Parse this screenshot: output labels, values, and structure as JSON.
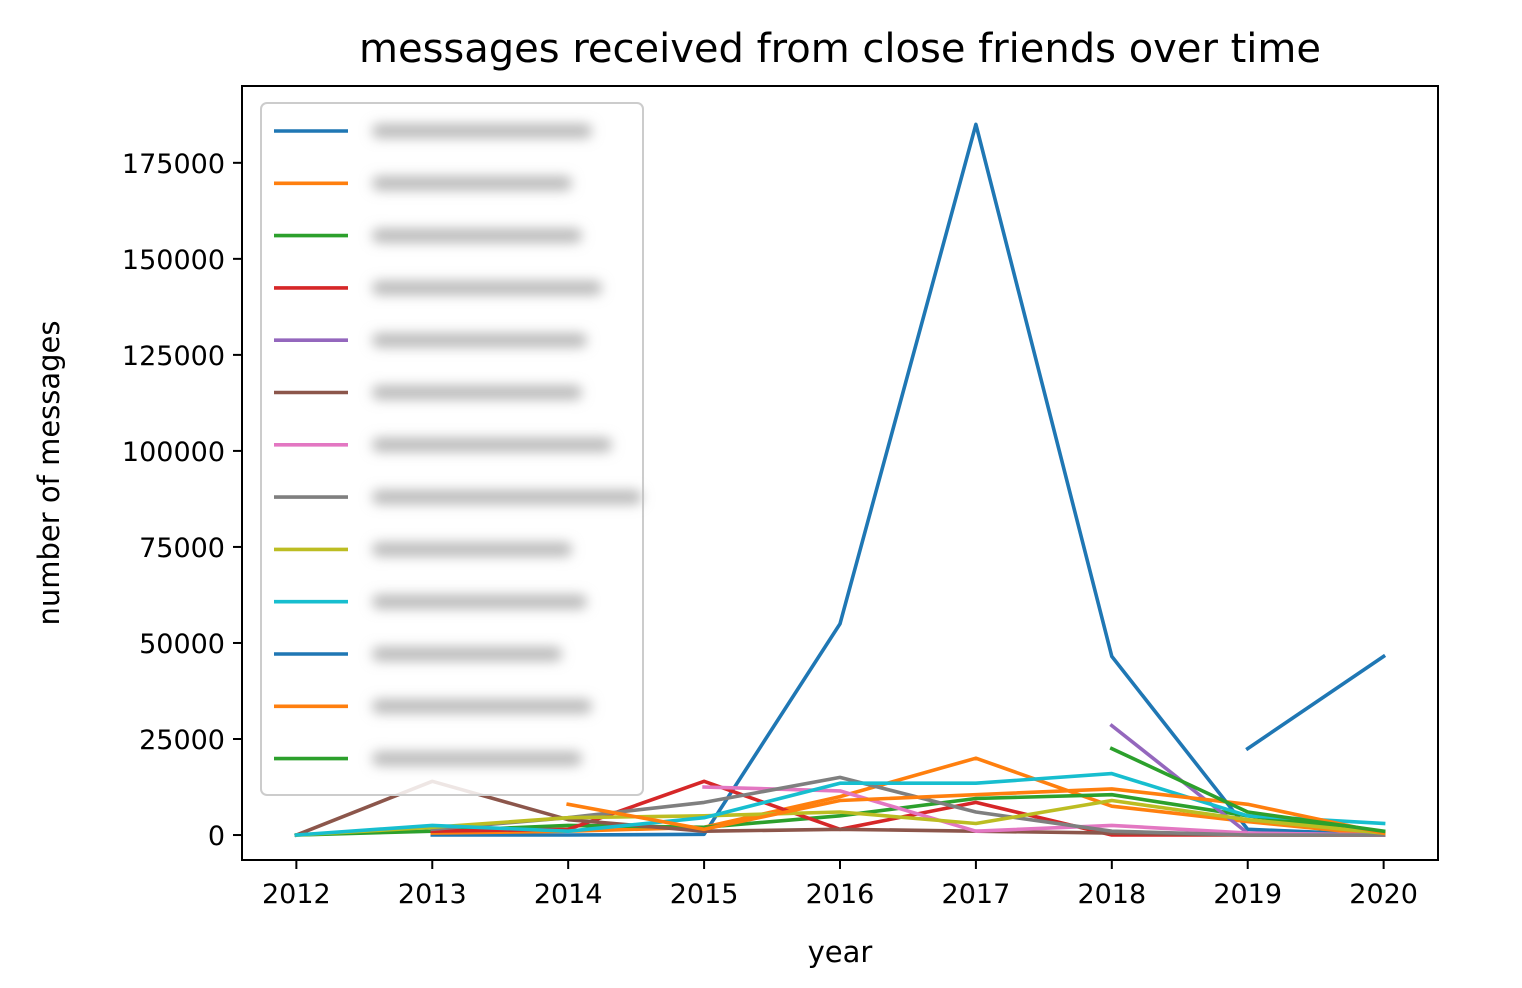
{
  "chart_data": {
    "type": "line",
    "title": "messages received from close friends over time",
    "xlabel": "year",
    "ylabel": "number of messages",
    "xlim": [
      2011.6,
      2020.4
    ],
    "ylim": [
      -6500,
      195000
    ],
    "x_ticks": [
      "2012",
      "2013",
      "2014",
      "2015",
      "2016",
      "2017",
      "2018",
      "2019",
      "2020"
    ],
    "y_ticks": [
      "0",
      "25000",
      "50000",
      "75000",
      "100000",
      "125000",
      "150000",
      "175000"
    ],
    "y_tick_values": [
      0,
      25000,
      50000,
      75000,
      100000,
      125000,
      150000,
      175000
    ],
    "grid": false,
    "legend_position": "upper-left",
    "series": [
      {
        "color": "#1f77b4",
        "values": [
          [
            2013,
            0
          ],
          [
            2014,
            0
          ],
          [
            2015,
            200
          ],
          [
            2016,
            55000
          ],
          [
            2017,
            185000
          ],
          [
            2018,
            46500
          ],
          [
            2019,
            1500
          ],
          [
            2020,
            0
          ]
        ]
      },
      {
        "color": "#ff7f0e",
        "values": [
          [
            2013,
            500
          ],
          [
            2014,
            1000
          ],
          [
            2015,
            2000
          ],
          [
            2016,
            10000
          ],
          [
            2017,
            20000
          ],
          [
            2018,
            7500
          ],
          [
            2019,
            3500
          ],
          [
            2020,
            0
          ]
        ]
      },
      {
        "color": "#2ca02c",
        "values": [
          [
            2012,
            0
          ],
          [
            2013,
            1000
          ],
          [
            2014,
            2500
          ],
          [
            2015,
            2000
          ],
          [
            2016,
            5000
          ],
          [
            2017,
            9500
          ],
          [
            2018,
            10500
          ],
          [
            2019,
            5000
          ],
          [
            2020,
            500
          ]
        ]
      },
      {
        "color": "#d62728",
        "values": [
          [
            2013,
            1000
          ],
          [
            2014,
            1500
          ],
          [
            2015,
            14000
          ],
          [
            2016,
            1500
          ],
          [
            2017,
            8500
          ],
          [
            2018,
            0
          ],
          [
            2019,
            0
          ],
          [
            2020,
            0
          ]
        ]
      },
      {
        "color": "#9467bd",
        "values": [
          [
            2018,
            28500
          ],
          [
            2019,
            500
          ],
          [
            2020,
            0
          ]
        ]
      },
      {
        "color": "#8c564b",
        "values": [
          [
            2012,
            0
          ],
          [
            2013,
            14000
          ],
          [
            2014,
            4000
          ],
          [
            2015,
            1000
          ],
          [
            2016,
            1500
          ],
          [
            2017,
            1000
          ],
          [
            2018,
            500
          ],
          [
            2019,
            0
          ],
          [
            2020,
            0
          ]
        ]
      },
      {
        "color": "#e377c2",
        "values": [
          [
            2015,
            12500
          ],
          [
            2016,
            11500
          ],
          [
            2017,
            1000
          ],
          [
            2018,
            2500
          ],
          [
            2019,
            500
          ],
          [
            2020,
            0
          ]
        ]
      },
      {
        "color": "#7f7f7f",
        "values": [
          [
            2013,
            1500
          ],
          [
            2014,
            4500
          ],
          [
            2015,
            8500
          ],
          [
            2016,
            15000
          ],
          [
            2017,
            6000
          ],
          [
            2018,
            1000
          ],
          [
            2019,
            0
          ],
          [
            2020,
            0
          ]
        ]
      },
      {
        "color": "#bcbd22",
        "values": [
          [
            2012,
            0
          ],
          [
            2013,
            2000
          ],
          [
            2014,
            4500
          ],
          [
            2015,
            5000
          ],
          [
            2016,
            6000
          ],
          [
            2017,
            3000
          ],
          [
            2018,
            9000
          ],
          [
            2019,
            4000
          ],
          [
            2020,
            500
          ]
        ]
      },
      {
        "color": "#17becf",
        "values": [
          [
            2012,
            0
          ],
          [
            2013,
            2500
          ],
          [
            2014,
            1000
          ],
          [
            2015,
            4500
          ],
          [
            2016,
            13500
          ],
          [
            2017,
            13500
          ],
          [
            2018,
            16000
          ],
          [
            2019,
            5000
          ],
          [
            2020,
            3000
          ]
        ]
      },
      {
        "color": "#1f77b4",
        "values": [
          [
            2019,
            22500
          ],
          [
            2020,
            46500
          ]
        ]
      },
      {
        "color": "#ff7f0e",
        "values": [
          [
            2014,
            8000
          ],
          [
            2015,
            1500
          ],
          [
            2016,
            9000
          ],
          [
            2017,
            10500
          ],
          [
            2018,
            12000
          ],
          [
            2019,
            8000
          ],
          [
            2020,
            500
          ]
        ]
      },
      {
        "color": "#2ca02c",
        "values": [
          [
            2018,
            22500
          ],
          [
            2019,
            6000
          ],
          [
            2020,
            1000
          ]
        ]
      }
    ]
  }
}
